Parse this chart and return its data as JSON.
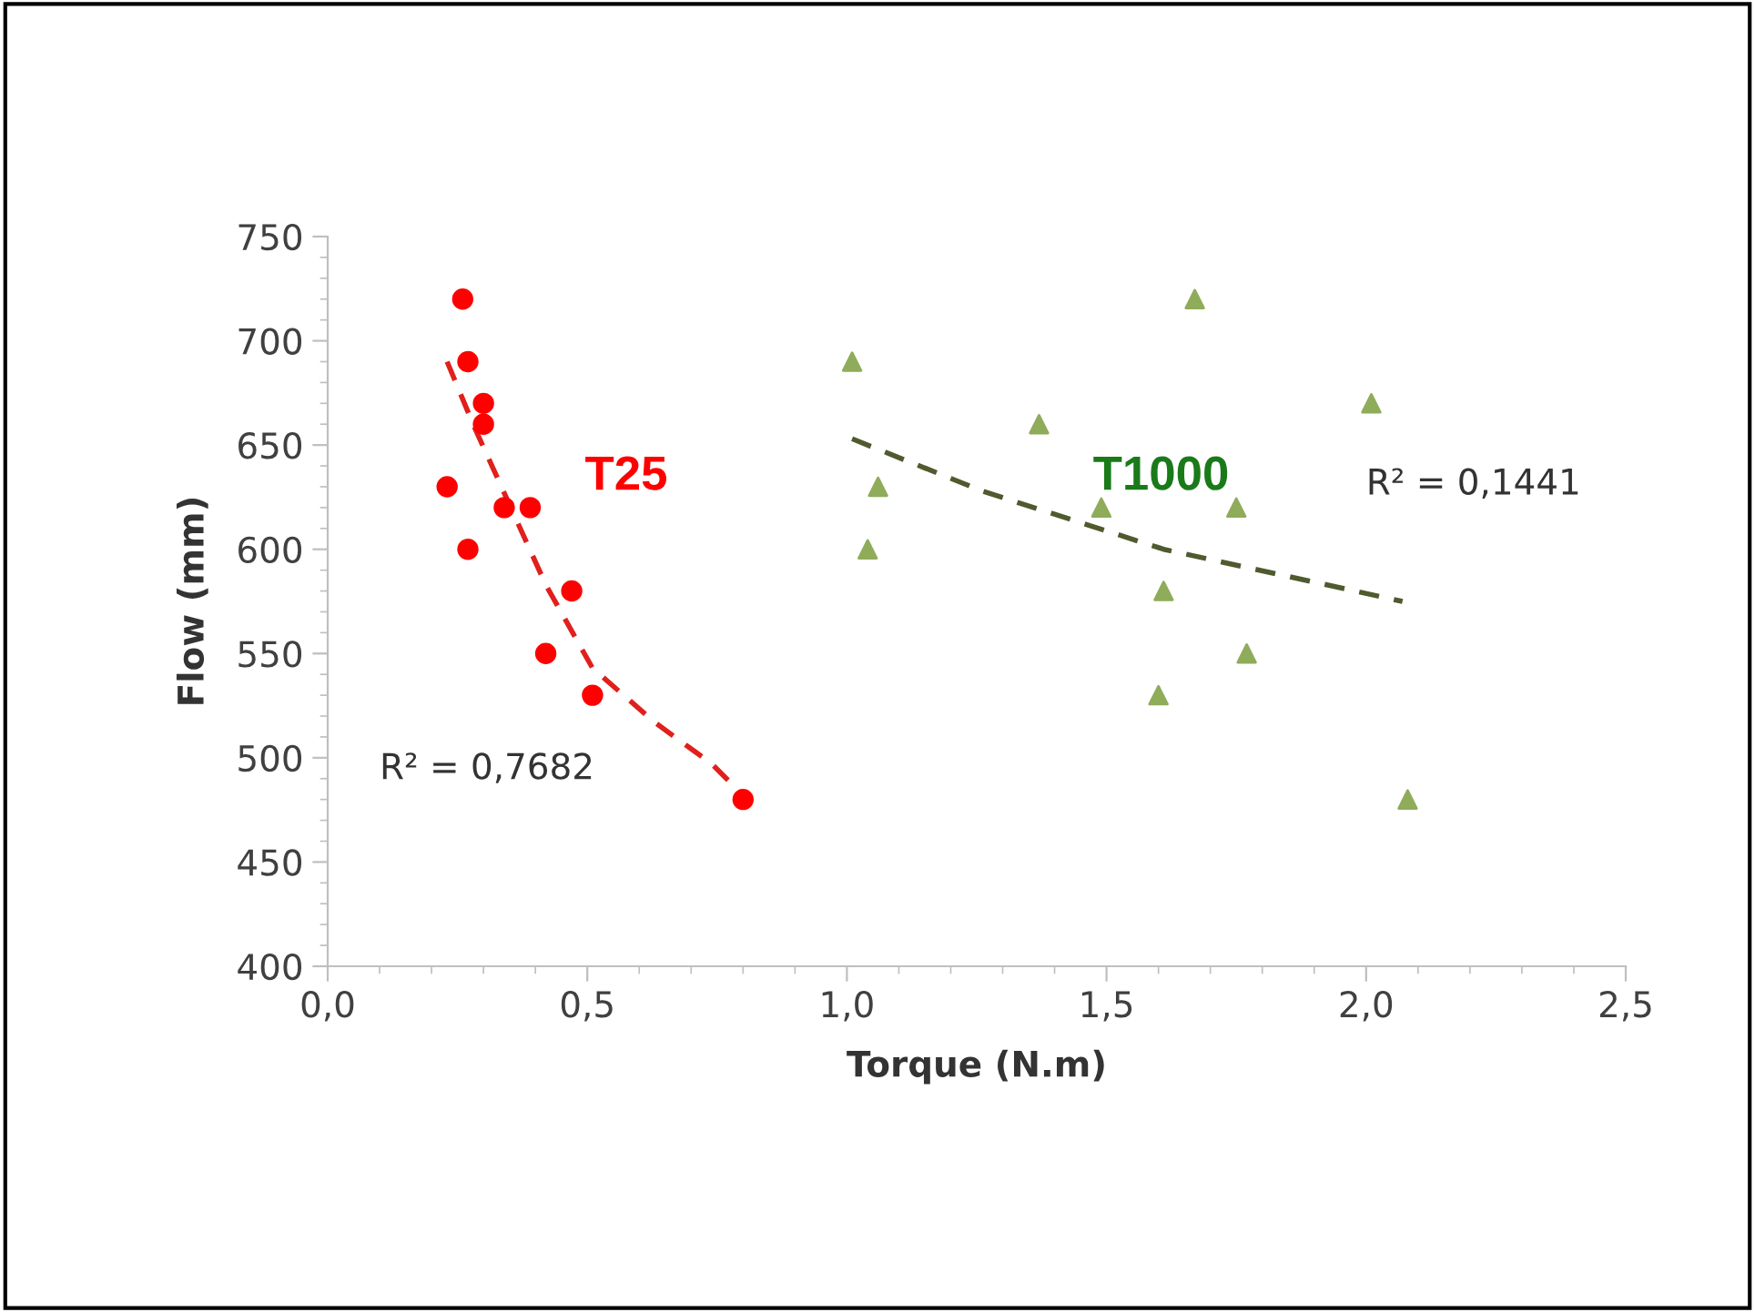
{
  "chart_data": {
    "type": "scatter",
    "xlabel": "Torque (N.m)",
    "ylabel": "Flow (mm)",
    "xlim": [
      0,
      2.5
    ],
    "ylim": [
      400,
      750
    ],
    "xticks": [
      {
        "value": 0,
        "label": "0,0"
      },
      {
        "value": 0.5,
        "label": "0,5"
      },
      {
        "value": 1,
        "label": "1,0"
      },
      {
        "value": 1.5,
        "label": "1,5"
      },
      {
        "value": 2,
        "label": "2,0"
      },
      {
        "value": 2.5,
        "label": "2,5"
      }
    ],
    "yticks": [
      400,
      450,
      500,
      550,
      600,
      650,
      700,
      750
    ],
    "grid": false,
    "legend": false,
    "series": [
      {
        "name": "T25",
        "marker": "circle",
        "color": "#ff0000",
        "x": [
          0.26,
          0.27,
          0.3,
          0.3,
          0.23,
          0.34,
          0.39,
          0.27,
          0.47,
          0.42,
          0.51,
          0.8
        ],
        "values": [
          720,
          690,
          670,
          660,
          630,
          620,
          620,
          600,
          580,
          550,
          530,
          480
        ]
      },
      {
        "name": "T1000",
        "marker": "triangle",
        "color": "#8fac5a",
        "x": [
          1.01,
          1.06,
          1.04,
          1.37,
          1.49,
          1.67,
          1.61,
          1.6,
          1.75,
          1.77,
          2.01,
          2.08
        ],
        "values": [
          690,
          630,
          600,
          660,
          620,
          720,
          580,
          530,
          620,
          550,
          670,
          480
        ]
      },
      {
        "type": "line",
        "line_style": "dashed",
        "color": "#e0201c",
        "x": [
          0.23,
          0.28,
          0.34,
          0.42,
          0.51,
          0.63,
          0.74,
          0.8
        ],
        "values": [
          690,
          660,
          627,
          583,
          543,
          517,
          497,
          482
        ]
      },
      {
        "type": "line",
        "line_style": "dashed",
        "color": "#4f5a2e",
        "x": [
          1.01,
          1.26,
          1.61,
          2.07
        ],
        "values": [
          653,
          628,
          600,
          575
        ]
      }
    ],
    "annotations": [
      "R² = 0,7682",
      "R² = 0,1441"
    ]
  }
}
